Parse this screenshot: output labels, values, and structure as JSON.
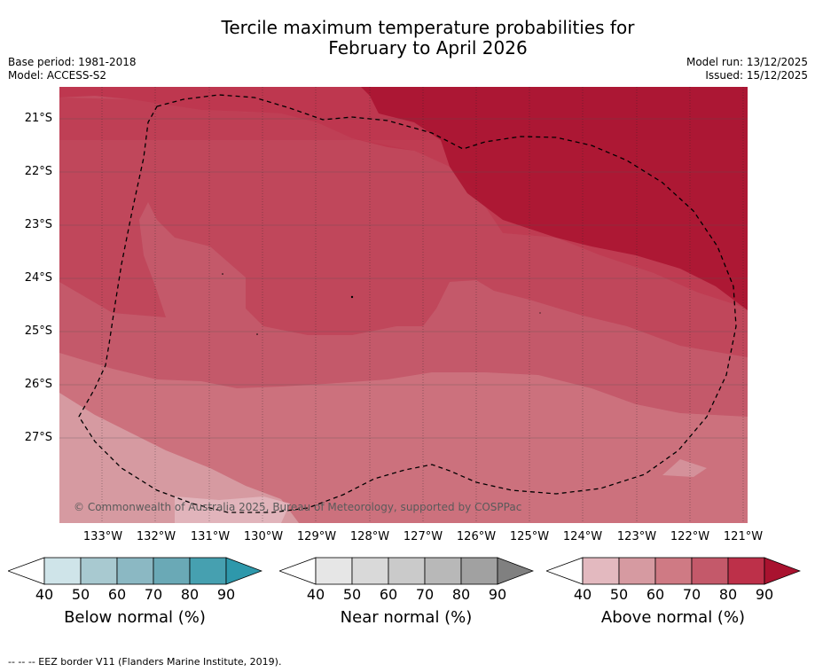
{
  "title_line1": "Tercile maximum temperature probabilities for",
  "title_line2": "February to April 2026",
  "base_period": "Base period: 1981-2018",
  "model": "Model: ACCESS-S2",
  "model_run": "Model run: 13/12/2025",
  "issued": "Issued: 15/12/2025",
  "copyright": "© Commonwealth of Australia 2025, Bureau of Meteorology, supported by COSPPac",
  "lat_labels": [
    "21°S",
    "22°S",
    "23°S",
    "24°S",
    "25°S",
    "26°S",
    "27°S"
  ],
  "lon_labels": [
    "133°W",
    "132°W",
    "131°W",
    "130°W",
    "129°W",
    "128°W",
    "127°W",
    "126°W",
    "125°W",
    "124°W",
    "123°W",
    "122°W",
    "121°W"
  ],
  "colorbars": [
    {
      "label": "Below normal (%)",
      "ticks": [
        "40",
        "50",
        "60",
        "70",
        "80",
        "90"
      ],
      "colors": [
        "#ffffff",
        "#cfe4e9",
        "#a8c9d0",
        "#8bb8c3",
        "#6aa9b6",
        "#46a0b0",
        "#2e98ab"
      ]
    },
    {
      "label": "Near normal (%)",
      "ticks": [
        "40",
        "50",
        "60",
        "70",
        "80",
        "90"
      ],
      "colors": [
        "#ffffff",
        "#e6e6e6",
        "#d9d9d9",
        "#cacaca",
        "#b8b8b8",
        "#a1a1a1",
        "#808080"
      ]
    },
    {
      "label": "Above normal (%)",
      "ticks": [
        "40",
        "50",
        "60",
        "70",
        "80",
        "90"
      ],
      "colors": [
        "#ffffff",
        "#e3b9bf",
        "#d69aa1",
        "#cf7a84",
        "#c4596a",
        "#bd3049",
        "#a9122f"
      ]
    }
  ],
  "footnote": "--  --  -- EEZ border V11 (Flanders Marine Institute, 2019)."
}
